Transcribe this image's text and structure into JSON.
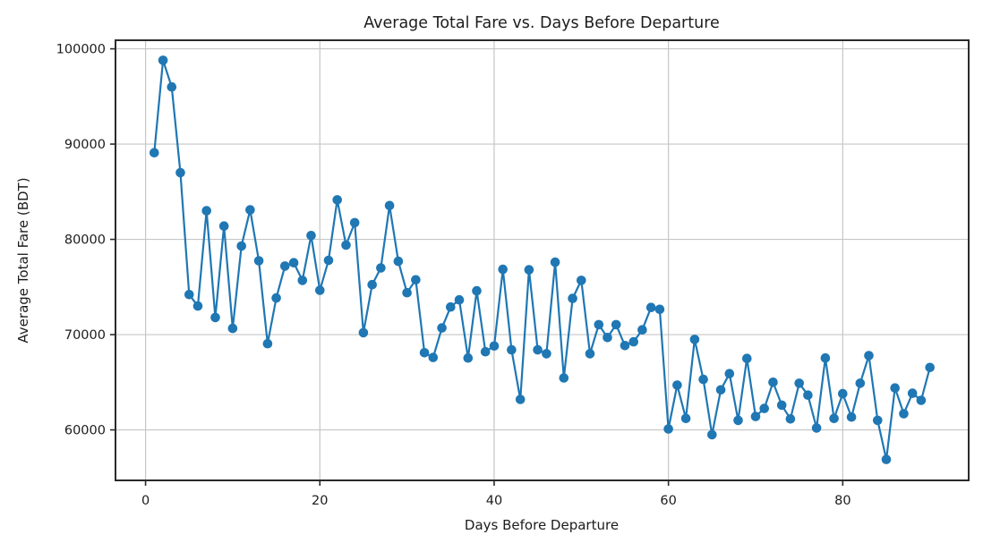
{
  "chart_data": {
    "type": "line",
    "title": "Average Total Fare vs. Days Before Departure",
    "xlabel": "Days Before Departure",
    "ylabel": "Average Total Fare (BDT)",
    "x": [
      1,
      2,
      3,
      4,
      5,
      6,
      7,
      8,
      9,
      10,
      11,
      12,
      13,
      14,
      15,
      16,
      17,
      18,
      19,
      20,
      21,
      22,
      23,
      24,
      25,
      26,
      27,
      28,
      29,
      30,
      31,
      32,
      33,
      34,
      35,
      36,
      37,
      38,
      39,
      40,
      41,
      42,
      43,
      44,
      45,
      46,
      47,
      48,
      49,
      50,
      51,
      52,
      53,
      54,
      55,
      56,
      57,
      58,
      59,
      60,
      61,
      62,
      63,
      64,
      65,
      66,
      67,
      68,
      69,
      70,
      71,
      72,
      73,
      74,
      75,
      76,
      77,
      78,
      79,
      80,
      81,
      82,
      83,
      84,
      85,
      86,
      87,
      88,
      89,
      90
    ],
    "values": [
      89100,
      98800,
      96000,
      87000,
      74200,
      73000,
      83000,
      71800,
      81400,
      70650,
      79300,
      83100,
      77750,
      69050,
      73850,
      77200,
      77550,
      75700,
      80400,
      74650,
      77800,
      84150,
      79400,
      81750,
      70200,
      75250,
      77000,
      83550,
      77700,
      74400,
      75750,
      68100,
      67600,
      70700,
      72900,
      73650,
      67550,
      74600,
      68200,
      68800,
      76850,
      68400,
      63200,
      76800,
      68400,
      68000,
      77600,
      65450,
      73800,
      75700,
      68000,
      71050,
      69700,
      71050,
      68850,
      69250,
      70500,
      72850,
      72650,
      60100,
      64700,
      61200,
      69500,
      65300,
      59500,
      64200,
      65900,
      61000,
      67500,
      61400,
      62250,
      65000,
      62600,
      61150,
      64900,
      63650,
      60200,
      67550,
      61200,
      63800,
      61350,
      64900,
      67800,
      61000,
      56900,
      64400,
      61700,
      63850,
      63100,
      66550
    ],
    "xticks": [
      0,
      20,
      40,
      60,
      80
    ],
    "yticks": [
      60000,
      70000,
      80000,
      90000,
      100000
    ],
    "xlim": [
      -3.45,
      94.45
    ],
    "ylim": [
      54700,
      100900
    ],
    "grid": true,
    "legend": "none",
    "line_color": "#1f77b4",
    "marker_color": "#1f77b4",
    "grid_color": "#c6c6c6",
    "spine_color": "#2a2a2a",
    "background_color": "#ffffff"
  }
}
